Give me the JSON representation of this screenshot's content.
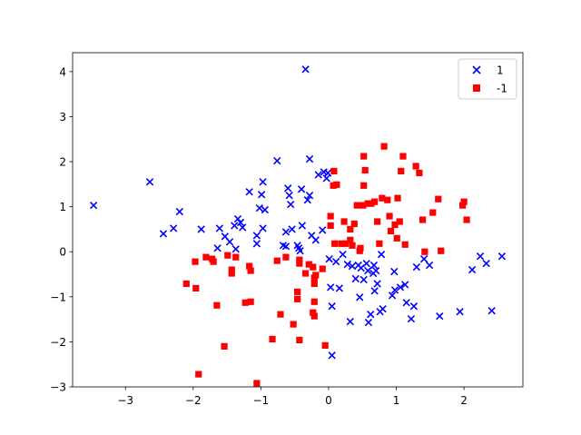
{
  "chart_data": {
    "type": "scatter",
    "xlim": [
      -3.78,
      2.87
    ],
    "ylim": [
      -3,
      4.42
    ],
    "xticks": [
      {
        "value": -3,
        "label": "−3"
      },
      {
        "value": -2,
        "label": "−2"
      },
      {
        "value": -1,
        "label": "−1"
      },
      0,
      1,
      2
    ],
    "yticks": [
      {
        "value": -3,
        "label": "−3"
      },
      {
        "value": -2,
        "label": "−2"
      },
      {
        "value": -1,
        "label": "−1"
      },
      0,
      1,
      2,
      3,
      4
    ],
    "legend": "upper right",
    "series": [
      {
        "name": "1",
        "color": "#0000ff",
        "marker": "x",
        "x": [
          -3.47,
          -2.64,
          -2.44,
          -2.29,
          -2.2,
          -1.88,
          -1.61,
          -1.64,
          -1.53,
          -1.46,
          -1.39,
          -1.34,
          -1.3,
          -1.27,
          -1.37,
          -1.17,
          -1.06,
          -1.06,
          -1.02,
          -0.99,
          -0.97,
          -0.94,
          -0.97,
          -0.76,
          -0.67,
          -0.63,
          -0.63,
          -0.6,
          -0.58,
          -0.56,
          -0.54,
          -0.46,
          -0.44,
          -0.42,
          -0.4,
          -0.39,
          -0.34,
          -0.31,
          -0.28,
          -0.28,
          -0.25,
          -0.19,
          -0.15,
          -0.09,
          -0.07,
          -0.03,
          -0.01,
          0.01,
          0.03,
          0.05,
          0.05,
          0.11,
          0.16,
          0.21,
          0.28,
          0.32,
          0.35,
          0.4,
          0.44,
          0.46,
          0.48,
          0.52,
          0.56,
          0.58,
          0.59,
          0.62,
          0.66,
          0.67,
          0.68,
          0.7,
          0.72,
          0.76,
          0.78,
          0.8,
          0.94,
          0.97,
          0.98,
          1.06,
          1.13,
          1.15,
          1.26,
          1.22,
          1.3,
          1.41,
          1.49,
          1.64,
          1.94,
          2.12,
          2.24,
          2.33,
          2.41,
          2.56
        ],
        "values": [
          1.03,
          1.55,
          0.4,
          0.52,
          0.89,
          0.5,
          0.52,
          0.08,
          0.34,
          0.22,
          0.58,
          0.73,
          0.65,
          0.54,
          0.06,
          1.33,
          0.36,
          0.18,
          0.97,
          1.27,
          1.55,
          0.93,
          0.52,
          2.02,
          0.14,
          0.12,
          0.44,
          1.41,
          1.25,
          1.05,
          0.5,
          0.14,
          0.08,
          0.02,
          1.39,
          0.58,
          4.05,
          1.15,
          1.25,
          2.06,
          0.36,
          0.26,
          1.71,
          0.48,
          1.77,
          1.63,
          1.75,
          -0.16,
          -0.79,
          -1.21,
          -2.3,
          -0.22,
          -0.81,
          -0.06,
          -0.28,
          -1.55,
          -0.32,
          -0.6,
          -0.3,
          -1.01,
          -0.36,
          -0.62,
          -0.26,
          -0.42,
          -1.57,
          -1.39,
          -0.48,
          -0.3,
          -0.87,
          -0.42,
          -0.71,
          -1.33,
          -0.06,
          -1.27,
          -0.97,
          -0.44,
          -0.85,
          -0.79,
          -0.73,
          -1.13,
          -1.21,
          -1.49,
          -0.34,
          -0.16,
          -0.3,
          -1.43,
          -1.33,
          -0.4,
          -0.1,
          -0.26,
          -1.31,
          -0.1
        ]
      },
      {
        "name": "-1",
        "color": "#ff0000",
        "marker": "s",
        "x": [
          -1.97,
          -2.1,
          -1.96,
          -1.92,
          -1.81,
          -1.72,
          -1.7,
          -1.65,
          -1.54,
          -1.49,
          -1.43,
          -1.43,
          -1.37,
          -1.23,
          -1.17,
          -1.15,
          -1.15,
          -1.06,
          -0.83,
          -0.76,
          -0.71,
          -0.63,
          -0.52,
          -0.43,
          -0.46,
          -0.46,
          -0.43,
          -0.43,
          -0.34,
          -0.29,
          -0.23,
          -0.21,
          -0.21,
          -0.21,
          -0.23,
          -0.21,
          -0.19,
          -0.09,
          -0.05,
          0.03,
          0.03,
          0.07,
          0.08,
          0.12,
          0.09,
          0.19,
          0.23,
          0.25,
          0.32,
          0.32,
          0.35,
          0.38,
          0.42,
          0.46,
          0.47,
          0.52,
          0.52,
          0.54,
          0.51,
          0.58,
          0.63,
          0.68,
          0.72,
          0.75,
          0.79,
          0.82,
          0.87,
          0.9,
          0.92,
          0.98,
          1.01,
          1.02,
          1.05,
          1.07,
          1.1,
          1.13,
          1.29,
          1.34,
          1.39,
          1.42,
          1.54,
          1.62,
          1.66,
          1.98,
          2.0,
          2.04
        ],
        "values": [
          -0.22,
          -0.71,
          -0.81,
          -2.72,
          -0.12,
          -0.16,
          -0.22,
          -1.19,
          -2.1,
          -0.08,
          -0.4,
          -0.48,
          -0.12,
          -1.13,
          -0.32,
          -0.42,
          -1.11,
          -2.92,
          -1.94,
          -0.2,
          -1.39,
          -0.12,
          -1.61,
          -1.96,
          -0.89,
          -1.05,
          -0.18,
          -0.26,
          -0.48,
          -0.28,
          -0.34,
          -0.58,
          -0.71,
          -1.11,
          -1.35,
          -1.43,
          -0.52,
          -0.38,
          -2.08,
          0.79,
          0.58,
          1.47,
          1.79,
          1.49,
          0.18,
          0.18,
          0.67,
          0.18,
          0.26,
          0.5,
          0.14,
          0.62,
          1.03,
          0.02,
          0.08,
          2.12,
          1.47,
          1.81,
          1.03,
          1.07,
          1.07,
          1.11,
          0.67,
          0.18,
          1.19,
          2.34,
          1.15,
          0.79,
          0.46,
          0.6,
          0.3,
          1.19,
          0.67,
          1.79,
          2.12,
          0.16,
          1.9,
          1.75,
          0.71,
          0.0,
          0.87,
          1.17,
          0.02,
          1.03,
          1.11,
          0.71
        ]
      }
    ]
  }
}
